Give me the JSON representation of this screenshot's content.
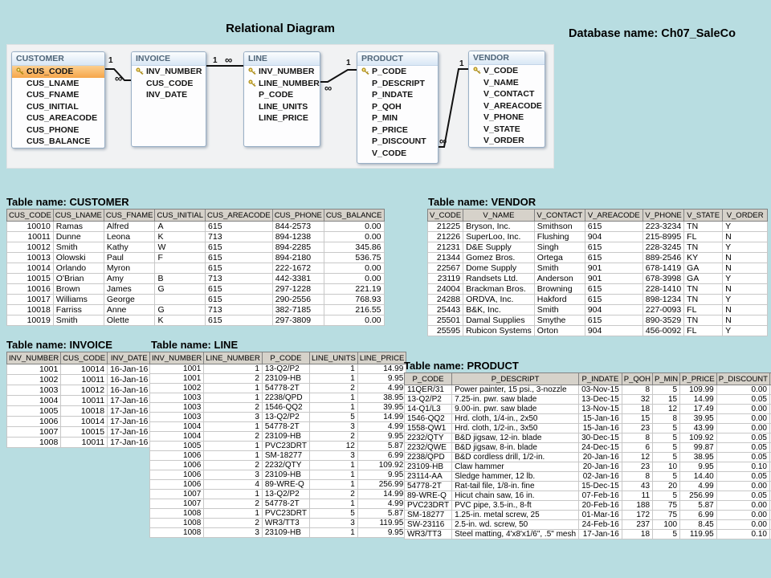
{
  "page": {
    "title": "Relational Diagram",
    "database_label": "Database name: Ch07_SaleCo"
  },
  "colors": {
    "background": "#b8dde1",
    "selected_field_orange": "#f6a64a",
    "entity_header_blue": "#d9e7f5",
    "table_header_gray": "#d6d2ca",
    "key_icon_gold": "#a8860b"
  },
  "diagram": {
    "entities": [
      {
        "name": "CUSTOMER",
        "fields": [
          {
            "label": "CUS_CODE",
            "key": true,
            "selected": true
          },
          {
            "label": "CUS_LNAME"
          },
          {
            "label": "CUS_FNAME"
          },
          {
            "label": "CUS_INITIAL"
          },
          {
            "label": "CUS_AREACODE"
          },
          {
            "label": "CUS_PHONE"
          },
          {
            "label": "CUS_BALANCE"
          }
        ]
      },
      {
        "name": "INVOICE",
        "fields": [
          {
            "label": "INV_NUMBER",
            "key": true
          },
          {
            "label": "CUS_CODE"
          },
          {
            "label": "INV_DATE"
          }
        ]
      },
      {
        "name": "LINE",
        "fields": [
          {
            "label": "INV_NUMBER",
            "key": true
          },
          {
            "label": "LINE_NUMBER",
            "key": true
          },
          {
            "label": "P_CODE"
          },
          {
            "label": "LINE_UNITS"
          },
          {
            "label": "LINE_PRICE"
          }
        ]
      },
      {
        "name": "PRODUCT",
        "fields": [
          {
            "label": "P_CODE",
            "key": true
          },
          {
            "label": "P_DESCRIPT"
          },
          {
            "label": "P_INDATE"
          },
          {
            "label": "P_QOH"
          },
          {
            "label": "P_MIN"
          },
          {
            "label": "P_PRICE"
          },
          {
            "label": "P_DISCOUNT"
          },
          {
            "label": "V_CODE"
          }
        ]
      },
      {
        "name": "VENDOR",
        "fields": [
          {
            "label": "V_CODE",
            "key": true
          },
          {
            "label": "V_NAME"
          },
          {
            "label": "V_CONTACT"
          },
          {
            "label": "V_AREACODE"
          },
          {
            "label": "V_PHONE"
          },
          {
            "label": "V_STATE"
          },
          {
            "label": "V_ORDER"
          }
        ]
      }
    ],
    "relations": [
      {
        "from": "CUSTOMER",
        "to": "INVOICE",
        "one_label": "1",
        "many_label": "∞"
      },
      {
        "from": "INVOICE",
        "to": "LINE",
        "one_label": "1",
        "many_label": "∞"
      },
      {
        "from": "PRODUCT",
        "to": "LINE",
        "one_label": "1",
        "many_label": "∞"
      },
      {
        "from": "VENDOR",
        "to": "PRODUCT",
        "one_label": "1",
        "many_label": "∞"
      }
    ]
  },
  "tables": {
    "customer": {
      "title": "Table name: CUSTOMER",
      "columns": [
        "CUS_CODE",
        "CUS_LNAME",
        "CUS_FNAME",
        "CUS_INITIAL",
        "CUS_AREACODE",
        "CUS_PHONE",
        "CUS_BALANCE"
      ],
      "rows": [
        [
          10010,
          "Ramas",
          "Alfred",
          "A",
          615,
          "844-2573",
          "0.00"
        ],
        [
          10011,
          "Dunne",
          "Leona",
          "K",
          713,
          "894-1238",
          "0.00"
        ],
        [
          10012,
          "Smith",
          "Kathy",
          "W",
          615,
          "894-2285",
          "345.86"
        ],
        [
          10013,
          "Olowski",
          "Paul",
          "F",
          615,
          "894-2180",
          "536.75"
        ],
        [
          10014,
          "Orlando",
          "Myron",
          "",
          615,
          "222-1672",
          "0.00"
        ],
        [
          10015,
          "O'Brian",
          "Amy",
          "B",
          713,
          "442-3381",
          "0.00"
        ],
        [
          10016,
          "Brown",
          "James",
          "G",
          615,
          "297-1228",
          "221.19"
        ],
        [
          10017,
          "Williams",
          "George",
          "",
          615,
          "290-2556",
          "768.93"
        ],
        [
          10018,
          "Farriss",
          "Anne",
          "G",
          713,
          "382-7185",
          "216.55"
        ],
        [
          10019,
          "Smith",
          "Olette",
          "K",
          615,
          "297-3809",
          "0.00"
        ]
      ]
    },
    "vendor": {
      "title": "Table name: VENDOR",
      "columns": [
        "V_CODE",
        "V_NAME",
        "V_CONTACT",
        "V_AREACODE",
        "V_PHONE",
        "V_STATE",
        "V_ORDER"
      ],
      "rows": [
        [
          21225,
          "Bryson, Inc.",
          "Smithson",
          615,
          "223-3234",
          "TN",
          "Y"
        ],
        [
          21226,
          "SuperLoo, Inc.",
          "Flushing",
          904,
          "215-8995",
          "FL",
          "N"
        ],
        [
          21231,
          "D&E Supply",
          "Singh",
          615,
          "228-3245",
          "TN",
          "Y"
        ],
        [
          21344,
          "Gomez Bros.",
          "Ortega",
          615,
          "889-2546",
          "KY",
          "N"
        ],
        [
          22567,
          "Dome Supply",
          "Smith",
          901,
          "678-1419",
          "GA",
          "N"
        ],
        [
          23119,
          "Randsets Ltd.",
          "Anderson",
          901,
          "678-3998",
          "GA",
          "Y"
        ],
        [
          24004,
          "Brackman Bros.",
          "Browning",
          615,
          "228-1410",
          "TN",
          "N"
        ],
        [
          24288,
          "ORDVA, Inc.",
          "Hakford",
          615,
          "898-1234",
          "TN",
          "Y"
        ],
        [
          25443,
          "B&K, Inc.",
          "Smith",
          904,
          "227-0093",
          "FL",
          "N"
        ],
        [
          25501,
          "Damal Supplies",
          "Smythe",
          615,
          "890-3529",
          "TN",
          "N"
        ],
        [
          25595,
          "Rubicon Systems",
          "Orton",
          904,
          "456-0092",
          "FL",
          "Y"
        ]
      ]
    },
    "invoice": {
      "title": "Table name: INVOICE",
      "columns": [
        "INV_NUMBER",
        "CUS_CODE",
        "INV_DATE"
      ],
      "rows": [
        [
          1001,
          10014,
          "16-Jan-16"
        ],
        [
          1002,
          10011,
          "16-Jan-16"
        ],
        [
          1003,
          10012,
          "16-Jan-16"
        ],
        [
          1004,
          10011,
          "17-Jan-16"
        ],
        [
          1005,
          10018,
          "17-Jan-16"
        ],
        [
          1006,
          10014,
          "17-Jan-16"
        ],
        [
          1007,
          10015,
          "17-Jan-16"
        ],
        [
          1008,
          10011,
          "17-Jan-16"
        ]
      ]
    },
    "line": {
      "title": "Table name: LINE",
      "columns": [
        "INV_NUMBER",
        "LINE_NUMBER",
        "P_CODE",
        "LINE_UNITS",
        "LINE_PRICE"
      ],
      "rows": [
        [
          1001,
          1,
          "13-Q2/P2",
          1,
          "14.99"
        ],
        [
          1001,
          2,
          "23109-HB",
          1,
          "9.95"
        ],
        [
          1002,
          1,
          "54778-2T",
          2,
          "4.99"
        ],
        [
          1003,
          1,
          "2238/QPD",
          1,
          "38.95"
        ],
        [
          1003,
          2,
          "1546-QQ2",
          1,
          "39.95"
        ],
        [
          1003,
          3,
          "13-Q2/P2",
          5,
          "14.99"
        ],
        [
          1004,
          1,
          "54778-2T",
          3,
          "4.99"
        ],
        [
          1004,
          2,
          "23109-HB",
          2,
          "9.95"
        ],
        [
          1005,
          1,
          "PVC23DRT",
          12,
          "5.87"
        ],
        [
          1006,
          1,
          "SM-18277",
          3,
          "6.99"
        ],
        [
          1006,
          2,
          "2232/QTY",
          1,
          "109.92"
        ],
        [
          1006,
          3,
          "23109-HB",
          1,
          "9.95"
        ],
        [
          1006,
          4,
          "89-WRE-Q",
          1,
          "256.99"
        ],
        [
          1007,
          1,
          "13-Q2/P2",
          2,
          "14.99"
        ],
        [
          1007,
          2,
          "54778-2T",
          1,
          "4.99"
        ],
        [
          1008,
          1,
          "PVC23DRT",
          5,
          "5.87"
        ],
        [
          1008,
          2,
          "WR3/TT3",
          3,
          "119.95"
        ],
        [
          1008,
          3,
          "23109-HB",
          1,
          "9.95"
        ]
      ]
    },
    "product": {
      "title": "Table name: PRODUCT",
      "columns": [
        "P_CODE",
        "P_DESCRIPT",
        "P_INDATE",
        "P_QOH",
        "P_MIN",
        "P_PRICE",
        "P_DISCOUNT",
        "V_CODE"
      ],
      "rows": [
        [
          "11QER/31",
          "Power painter, 15 psi., 3-nozzle",
          "03-Nov-15",
          8,
          5,
          "109.99",
          "0.00",
          25595
        ],
        [
          "13-Q2/P2",
          "7.25-in. pwr. saw blade",
          "13-Dec-15",
          32,
          15,
          "14.99",
          "0.05",
          21344
        ],
        [
          "14-Q1/L3",
          "9.00-in. pwr. saw blade",
          "13-Nov-15",
          18,
          12,
          "17.49",
          "0.00",
          21344
        ],
        [
          "1546-QQ2",
          "Hrd. cloth, 1/4-in., 2x50",
          "15-Jan-16",
          15,
          8,
          "39.95",
          "0.00",
          23119
        ],
        [
          "1558-QW1",
          "Hrd. cloth, 1/2-in., 3x50",
          "15-Jan-16",
          23,
          5,
          "43.99",
          "0.00",
          23119
        ],
        [
          "2232/QTY",
          "B&D jigsaw, 12-in. blade",
          "30-Dec-15",
          8,
          5,
          "109.92",
          "0.05",
          24288
        ],
        [
          "2232/QWE",
          "B&D jigsaw, 8-in. blade",
          "24-Dec-15",
          6,
          5,
          "99.87",
          "0.05",
          24288
        ],
        [
          "2238/QPD",
          "B&D cordless drill, 1/2-in.",
          "20-Jan-16",
          12,
          5,
          "38.95",
          "0.05",
          25595
        ],
        [
          "23109-HB",
          "Claw hammer",
          "20-Jan-16",
          23,
          10,
          "9.95",
          "0.10",
          21225
        ],
        [
          "23114-AA",
          "Sledge hammer, 12 lb.",
          "02-Jan-16",
          8,
          5,
          "14.40",
          "0.05",
          ""
        ],
        [
          "54778-2T",
          "Rat-tail file, 1/8-in. fine",
          "15-Dec-15",
          43,
          20,
          "4.99",
          "0.00",
          21344
        ],
        [
          "89-WRE-Q",
          "Hicut chain saw, 16 in.",
          "07-Feb-16",
          11,
          5,
          "256.99",
          "0.05",
          24288
        ],
        [
          "PVC23DRT",
          "PVC pipe, 3.5-in., 8-ft",
          "20-Feb-16",
          188,
          75,
          "5.87",
          "0.00",
          ""
        ],
        [
          "SM-18277",
          "1.25-in. metal screw, 25",
          "01-Mar-16",
          172,
          75,
          "6.99",
          "0.00",
          21225
        ],
        [
          "SW-23116",
          "2.5-in. wd. screw, 50",
          "24-Feb-16",
          237,
          100,
          "8.45",
          "0.00",
          21231
        ],
        [
          "WR3/TT3",
          "Steel matting, 4'x8'x1/6\", .5\" mesh",
          "17-Jan-16",
          18,
          5,
          "119.95",
          "0.10",
          25595
        ]
      ]
    }
  }
}
